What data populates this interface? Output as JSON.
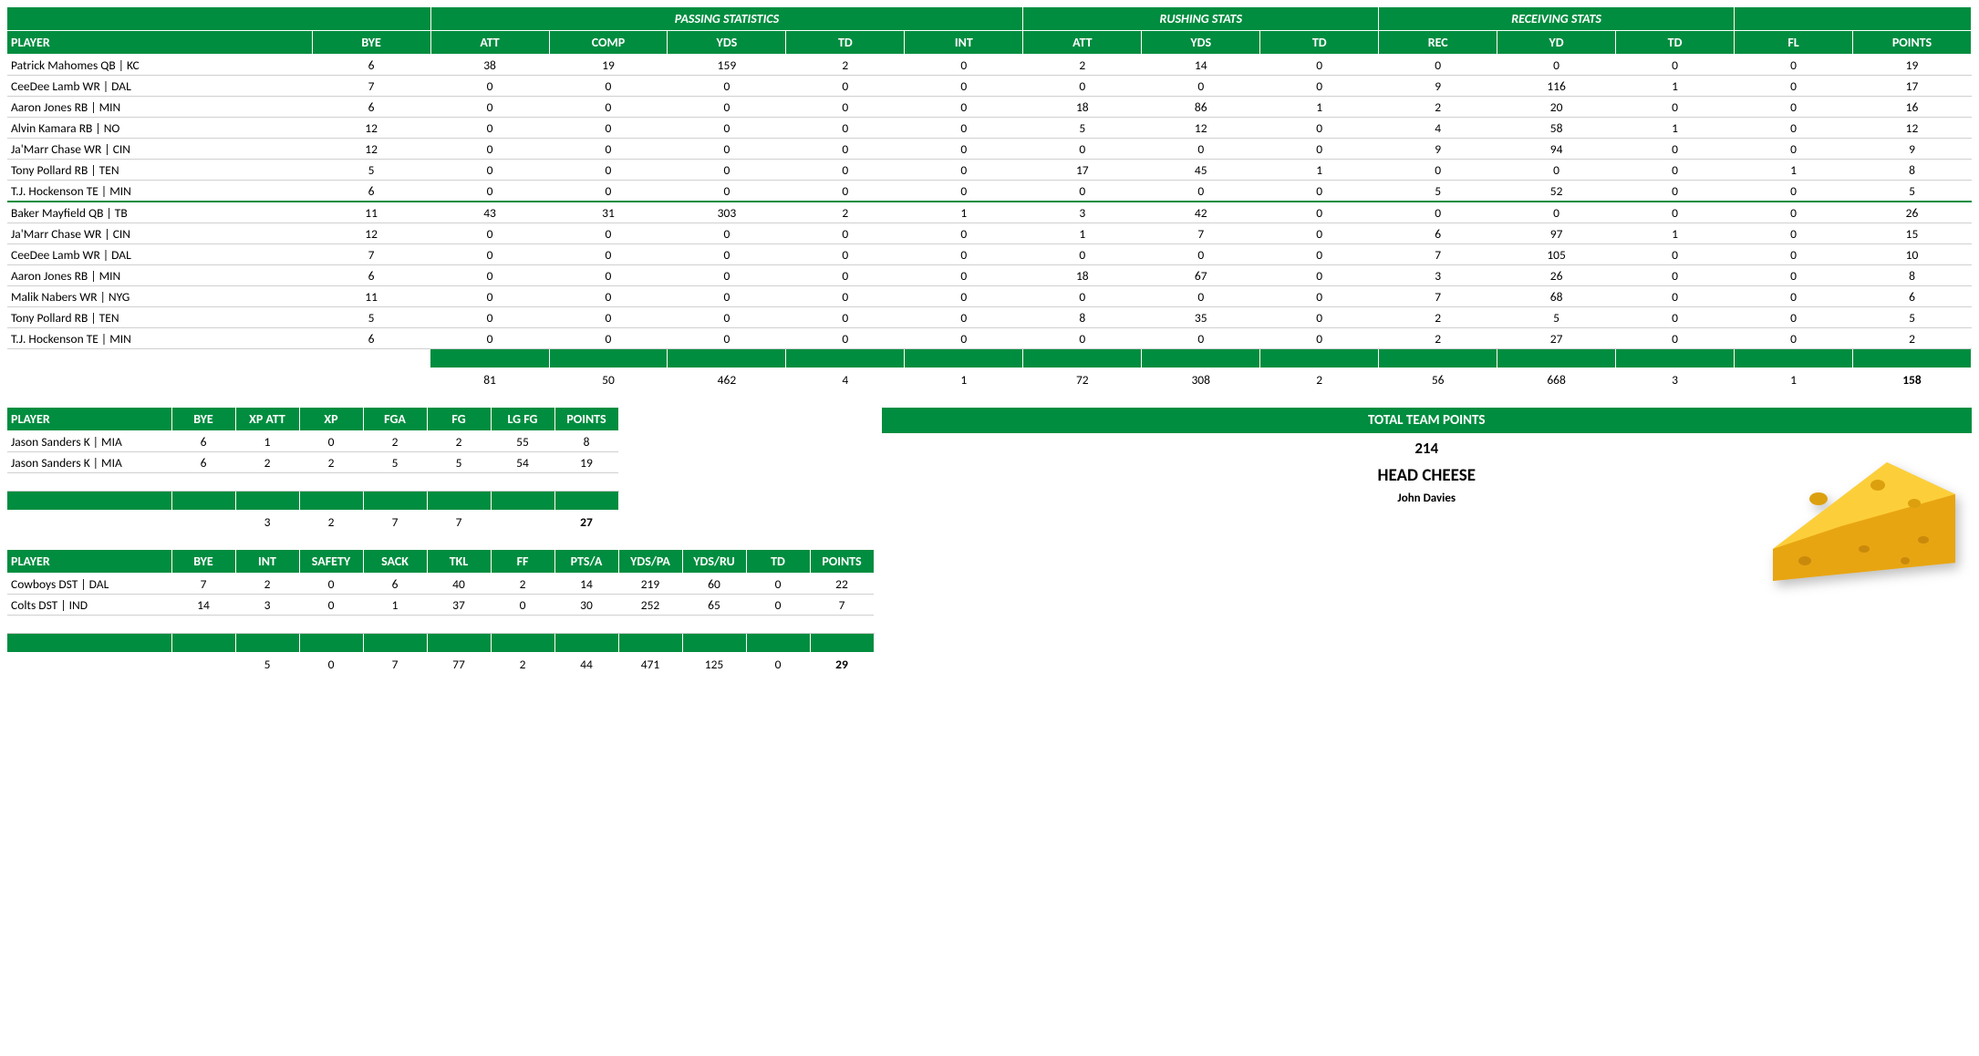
{
  "colors": {
    "header_bg": "#008d3f",
    "header_fg": "#ffffff",
    "row_border": "#d0d0d0"
  },
  "main": {
    "groups": [
      "PASSING STATISTICS",
      "RUSHING STATS",
      "RECEIVING STATS"
    ],
    "headers": [
      "PLAYER",
      "BYE",
      "ATT",
      "COMP",
      "YDS",
      "TD",
      "INT",
      "ATT",
      "YDS",
      "TD",
      "REC",
      "YD",
      "TD",
      "FL",
      "POINTS"
    ],
    "rows_a": [
      [
        "Patrick Mahomes QB | KC",
        6,
        38,
        19,
        159,
        2,
        0,
        2,
        14,
        0,
        0,
        0,
        0,
        0,
        19
      ],
      [
        "CeeDee Lamb WR | DAL",
        7,
        0,
        0,
        0,
        0,
        0,
        0,
        0,
        0,
        9,
        116,
        1,
        0,
        17
      ],
      [
        "Aaron Jones RB | MIN",
        6,
        0,
        0,
        0,
        0,
        0,
        18,
        86,
        1,
        2,
        20,
        0,
        0,
        16
      ],
      [
        "Alvin Kamara RB | NO",
        12,
        0,
        0,
        0,
        0,
        0,
        5,
        12,
        0,
        4,
        58,
        1,
        0,
        12
      ],
      [
        "Ja'Marr Chase WR | CIN",
        12,
        0,
        0,
        0,
        0,
        0,
        0,
        0,
        0,
        9,
        94,
        0,
        0,
        9
      ],
      [
        "Tony Pollard RB | TEN",
        5,
        0,
        0,
        0,
        0,
        0,
        17,
        45,
        1,
        0,
        0,
        0,
        1,
        8
      ],
      [
        "T.J. Hockenson TE | MIN",
        6,
        0,
        0,
        0,
        0,
        0,
        0,
        0,
        0,
        5,
        52,
        0,
        0,
        5
      ]
    ],
    "rows_b": [
      [
        "Baker Mayfield QB | TB",
        11,
        43,
        31,
        303,
        2,
        1,
        3,
        42,
        0,
        0,
        0,
        0,
        0,
        26
      ],
      [
        "Ja'Marr Chase WR | CIN",
        12,
        0,
        0,
        0,
        0,
        0,
        1,
        7,
        0,
        6,
        97,
        1,
        0,
        15
      ],
      [
        "CeeDee Lamb WR | DAL",
        7,
        0,
        0,
        0,
        0,
        0,
        0,
        0,
        0,
        7,
        105,
        0,
        0,
        10
      ],
      [
        "Aaron Jones RB | MIN",
        6,
        0,
        0,
        0,
        0,
        0,
        18,
        67,
        0,
        3,
        26,
        0,
        0,
        8
      ],
      [
        "Malik Nabers WR | NYG",
        11,
        0,
        0,
        0,
        0,
        0,
        0,
        0,
        0,
        7,
        68,
        0,
        0,
        6
      ],
      [
        "Tony Pollard RB | TEN",
        5,
        0,
        0,
        0,
        0,
        0,
        8,
        35,
        0,
        2,
        5,
        0,
        0,
        5
      ],
      [
        "T.J. Hockenson TE | MIN",
        6,
        0,
        0,
        0,
        0,
        0,
        0,
        0,
        0,
        2,
        27,
        0,
        0,
        2
      ]
    ],
    "totals": [
      "",
      "",
      81,
      50,
      462,
      4,
      1,
      72,
      308,
      2,
      56,
      668,
      3,
      1,
      158
    ]
  },
  "kicking": {
    "headers": [
      "PLAYER",
      "BYE",
      "XP ATT",
      "XP",
      "FGA",
      "FG",
      "LG FG",
      "POINTS"
    ],
    "rows": [
      [
        "Jason Sanders K | MIA",
        6,
        1,
        0,
        2,
        2,
        55,
        8
      ],
      [
        "Jason Sanders K | MIA",
        6,
        2,
        2,
        5,
        5,
        54,
        19
      ]
    ],
    "totals": [
      "",
      "",
      3,
      2,
      7,
      7,
      "",
      27
    ]
  },
  "defense": {
    "headers": [
      "PLAYER",
      "BYE",
      "INT",
      "SAFETY",
      "SACK",
      "TKL",
      "FF",
      "PTS/A",
      "YDS/PA",
      "YDS/RU",
      "TD",
      "POINTS"
    ],
    "rows": [
      [
        "Cowboys DST | DAL",
        7,
        2,
        0,
        6,
        40,
        2,
        14,
        219,
        60,
        0,
        22
      ],
      [
        "Colts DST | IND",
        14,
        3,
        0,
        1,
        37,
        0,
        30,
        252,
        65,
        0,
        7
      ]
    ],
    "totals": [
      "",
      "",
      5,
      0,
      7,
      77,
      2,
      44,
      471,
      125,
      0,
      29
    ]
  },
  "team": {
    "points_label": "TOTAL TEAM POINTS",
    "points": 214,
    "name": "HEAD CHEESE",
    "owner": "John Davies"
  }
}
